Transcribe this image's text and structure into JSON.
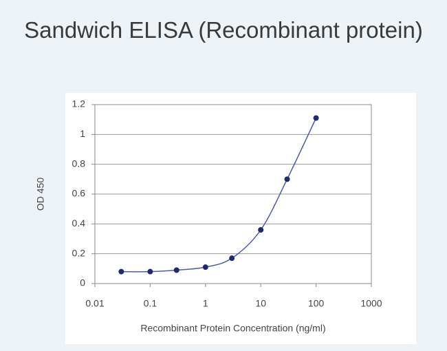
{
  "chart_data": {
    "type": "line",
    "title": "Sandwich ELISA (Recombinant protein)",
    "x_label": "Recombinant Protein Concentration (ng/ml)",
    "y_label": "OD 450",
    "x": [
      0.03,
      0.1,
      0.3,
      1,
      3,
      10,
      30,
      100
    ],
    "series": [
      {
        "color": "#1f2a6e",
        "values": [
          0.08,
          0.08,
          0.09,
          0.11,
          0.17,
          0.36,
          0.7,
          1.11
        ]
      }
    ],
    "xlim": [
      0.01,
      1000
    ],
    "xticks": [
      0.01,
      0.1,
      1,
      10,
      100,
      1000
    ],
    "xscale": "log",
    "ylim": [
      0,
      1.2
    ],
    "yticks": [
      0,
      0.2,
      0.4,
      0.6,
      0.8,
      1,
      1.2
    ],
    "grid": true
  }
}
